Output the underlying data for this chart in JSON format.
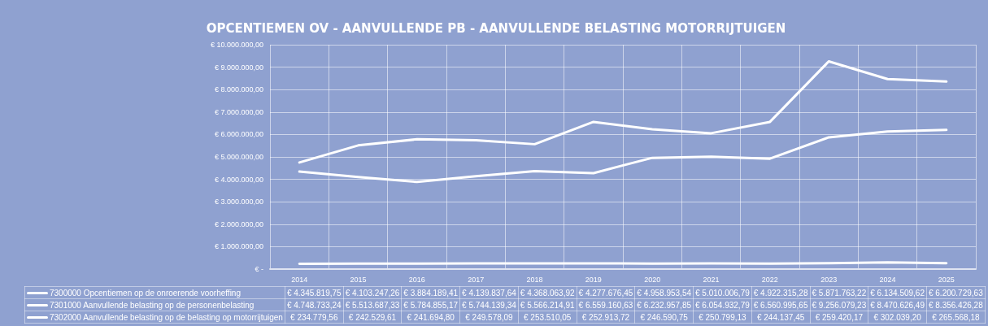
{
  "chart_data": {
    "type": "line",
    "title": "OPCENTIEMEN OV - AANVULLENDE PB - AANVULLENDE BELASTING MOTORRIJTUIGEN",
    "categories": [
      "2014",
      "2015",
      "2016",
      "2017",
      "2018",
      "2019",
      "2020",
      "2021",
      "2022",
      "2023",
      "2024",
      "2025"
    ],
    "series": [
      {
        "name": "7300000 Opcentiemen op de onroerende voorheffing",
        "color": "#ffffff",
        "values": [
          4345819.75,
          4103247.26,
          3884189.41,
          4139837.64,
          4368063.92,
          4277676.45,
          4958953.54,
          5010006.79,
          4922315.28,
          5871763.22,
          6134509.62,
          6200729.63
        ],
        "value_labels": [
          "€ 4.345.819,75",
          "€ 4.103.247,26",
          "€ 3.884.189,41",
          "€ 4.139.837,64",
          "€ 4.368.063,92",
          "€ 4.277.676,45",
          "€ 4.958.953,54",
          "€ 5.010.006,79",
          "€ 4.922.315,28",
          "€ 5.871.763,22",
          "€ 6.134.509,62",
          "€ 6.200.729,63"
        ]
      },
      {
        "name": "7301000 Aanvullende belasting op de personenbelasting",
        "color": "#ffffff",
        "values": [
          4748733.24,
          5513687.33,
          5784855.17,
          5744139.34,
          5566214.91,
          6559160.63,
          6232957.85,
          6054932.79,
          6560995.65,
          9256079.23,
          8470626.49,
          8356426.28
        ],
        "value_labels": [
          "€ 4.748.733,24",
          "€ 5.513.687,33",
          "€ 5.784.855,17",
          "€ 5.744.139,34",
          "€ 5.566.214,91",
          "€ 6.559.160,63",
          "€ 6.232.957,85",
          "€ 6.054.932,79",
          "€ 6.560.995,65",
          "€ 9.256.079,23",
          "€ 8.470.626,49",
          "€ 8.356.426,28"
        ]
      },
      {
        "name": "7302000 Aanvullende belasting op de belasting op motorrijtuigen",
        "color": "#ffffff",
        "values": [
          234779.56,
          242529.61,
          241694.8,
          249578.09,
          253510.05,
          252913.72,
          246590.75,
          250799.13,
          244137.45,
          259420.17,
          302039.2,
          265568.18
        ],
        "value_labels": [
          "€ 234.779,56",
          "€ 242.529,61",
          "€ 241.694,80",
          "€ 249.578,09",
          "€ 253.510,05",
          "€ 252.913,72",
          "€ 246.590,75",
          "€ 250.799,13",
          "€ 244.137,45",
          "€ 259.420,17",
          "€ 302.039,20",
          "€ 265.568,18"
        ]
      }
    ],
    "ylim": [
      0,
      10000000
    ],
    "yticks": [
      {
        "value": 0,
        "label": "€ -"
      },
      {
        "value": 1000000,
        "label": "€ 1.000.000,00"
      },
      {
        "value": 2000000,
        "label": "€ 2.000.000,00"
      },
      {
        "value": 3000000,
        "label": "€ 3.000.000,00"
      },
      {
        "value": 4000000,
        "label": "€ 4.000.000,00"
      },
      {
        "value": 5000000,
        "label": "€ 5.000.000,00"
      },
      {
        "value": 6000000,
        "label": "€ 6.000.000,00"
      },
      {
        "value": 7000000,
        "label": "€ 7.000.000,00"
      },
      {
        "value": 8000000,
        "label": "€ 8.000.000,00"
      },
      {
        "value": 9000000,
        "label": "€ 9.000.000,00"
      },
      {
        "value": 10000000,
        "label": "€ 10.000.000,00"
      }
    ],
    "grid": true,
    "legend": "bottom",
    "marker": "none",
    "line_style": "solid"
  }
}
